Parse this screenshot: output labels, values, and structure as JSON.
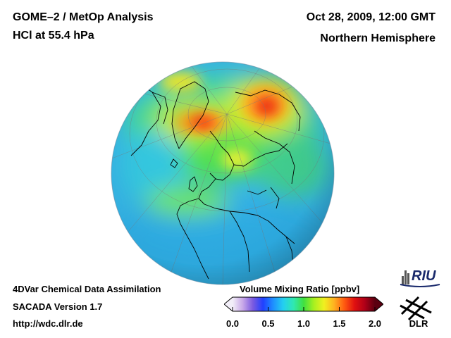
{
  "header": {
    "line1": "GOME–2 / MetOp Analysis",
    "line2": "HCl at 55.4 hPa",
    "date": "Oct 28, 2009, 12:00 GMT",
    "region": "Northern Hemisphere"
  },
  "footer": {
    "line1": "4DVar Chemical Data Assimilation",
    "line2": "SACADA Version 1.7",
    "line3": "http://wdc.dlr.de"
  },
  "colorbar": {
    "title": "Volume Mixing Ratio [ppbv]",
    "min": 0.0,
    "max": 2.0,
    "ticks": [
      "0.0",
      "0.5",
      "1.0",
      "1.5",
      "2.0"
    ],
    "colors": [
      "#f2eef8",
      "#c8a8e8",
      "#7a5ae0",
      "#2040ff",
      "#1e90ff",
      "#24d0f0",
      "#30e8b0",
      "#40e040",
      "#a8f020",
      "#f0f020",
      "#ffb020",
      "#ff5a10",
      "#e01010",
      "#b00018",
      "#5a0010"
    ]
  },
  "logos": {
    "riu": "RIU",
    "dlr": "DLR"
  },
  "colors": {
    "ocean_base": "#35b5e8",
    "land_outline": "#000000"
  }
}
